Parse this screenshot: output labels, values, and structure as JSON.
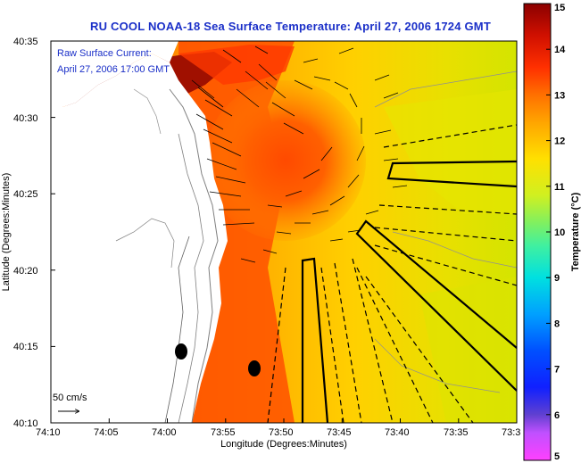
{
  "title": "RU COOL  NOAA-18  Sea Surface Temperature:  April 27, 2006 1724 GMT",
  "overlay": {
    "line1": "Raw Surface Current:",
    "line2": "April 27, 2006 17:00 GMT"
  },
  "scale_label": "50 cm/s",
  "axes": {
    "xlabel": "Longitude (Degrees:Minutes)",
    "ylabel": "Latitude (Degrees:Minutes)",
    "x_ticks": [
      "74:10",
      "74:05",
      "74:00",
      "73:55",
      "73:50",
      "73:45",
      "73:40",
      "73:35",
      "73:3"
    ],
    "y_ticks": [
      "40:35",
      "40:30",
      "40:25",
      "40:20",
      "40:15",
      "40:10"
    ]
  },
  "colorbar": {
    "label": "Temperature (°C)",
    "ticks": [
      "15",
      "14",
      "13",
      "12",
      "11",
      "10",
      "9",
      "8",
      "7",
      "6",
      "5"
    ],
    "min": 5,
    "max": 15,
    "colors": {
      "15": "#8b0000",
      "14": "#cc1500",
      "13": "#ff4a00",
      "12": "#ffa500",
      "11": "#ffe000",
      "10": "#c8f000",
      "9": "#40e0a0",
      "8": "#00a8ff",
      "7": "#0040ff",
      "6": "#3020c0",
      "5": "#ff40ff"
    }
  },
  "colors": {
    "title": "#1a2fc8",
    "land": "#ffffff",
    "sea_warm": "#ff6a00",
    "sea_mid": "#ffb000",
    "sea_cool": "#d8e800"
  }
}
